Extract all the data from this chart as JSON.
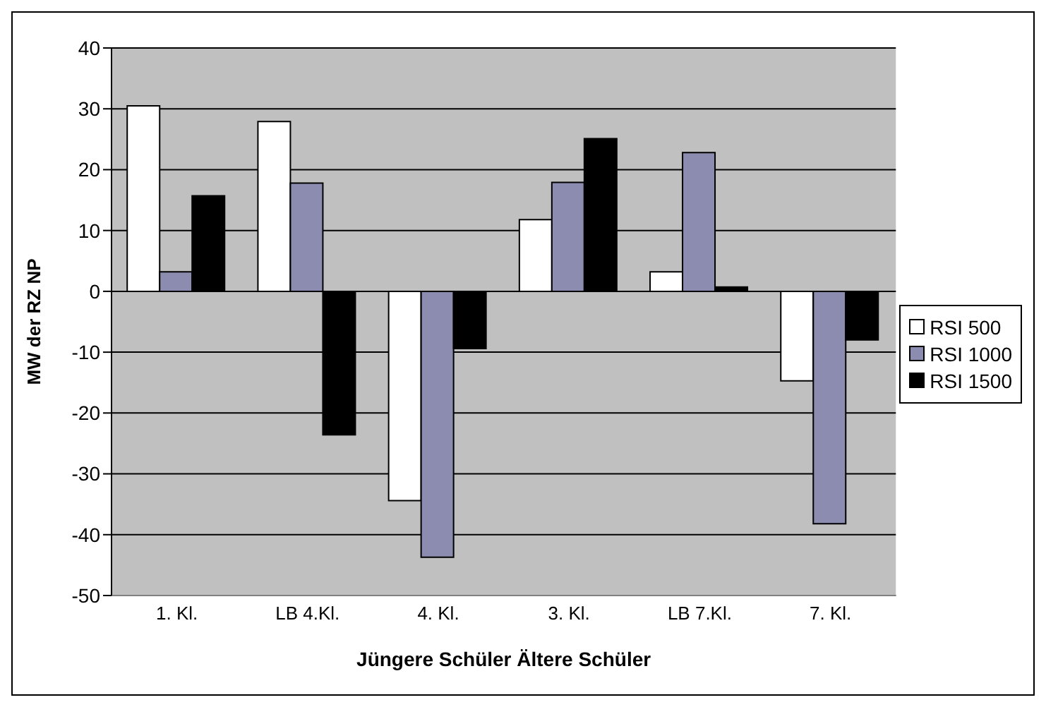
{
  "chart_data": {
    "type": "bar",
    "xlabel": "Jüngere Schüler    Ältere Schüler",
    "ylabel": "MW der RZ NP",
    "categories": [
      "1. Kl.",
      "LB 4.Kl.",
      "4. Kl.",
      "3. Kl.",
      "LB 7.Kl.",
      "7. Kl."
    ],
    "series": [
      {
        "name": "RSI 500",
        "color": "#ffffff",
        "values": [
          30.5,
          27.9,
          -34.4,
          11.8,
          3.2,
          -14.7
        ]
      },
      {
        "name": "RSI 1000",
        "color": "#8c8cb0",
        "values": [
          3.2,
          17.8,
          -43.7,
          17.9,
          22.8,
          -38.2
        ]
      },
      {
        "name": "RSI 1500",
        "color": "#000000",
        "values": [
          15.7,
          -23.6,
          -9.4,
          25.1,
          0.7,
          -8.0
        ]
      }
    ],
    "ylim": [
      -50,
      40
    ],
    "yticks": [
      -50,
      -40,
      -30,
      -20,
      -10,
      0,
      10,
      20,
      30,
      40
    ],
    "grid": "y",
    "legend": "right"
  }
}
